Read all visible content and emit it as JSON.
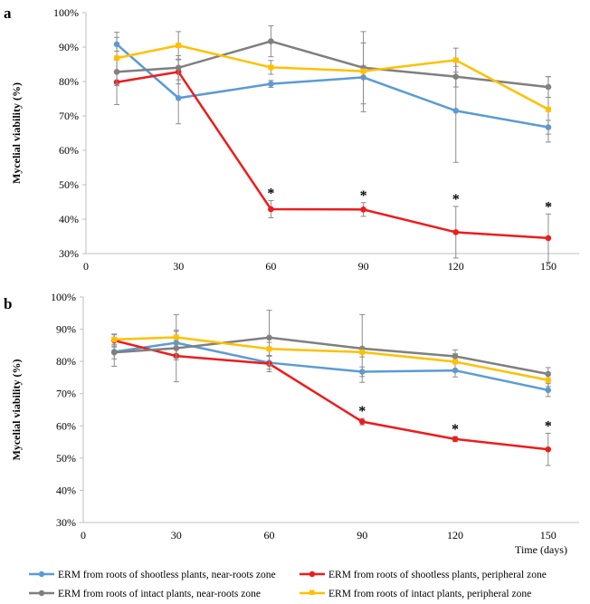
{
  "legend": [
    {
      "label": "ERM from  roots of shootless plants, near-roots zone",
      "color": "#5b9bd5"
    },
    {
      "label": "ERM from  roots of shootless plants, peripheral zone",
      "color": "#ee1c1c"
    },
    {
      "label": "ERM from roots of intact plants, near-roots zone",
      "color": "#7f7f7f"
    },
    {
      "label": "ERM from roots of intact plants, peripheral zone",
      "color": "#ffc000"
    }
  ],
  "chart_data": [
    {
      "type": "line",
      "panel_label": "a",
      "ylabel": "Mycelial viability (%)",
      "xlabel": "",
      "x": [
        10,
        30,
        60,
        90,
        120,
        150
      ],
      "xlim": [
        0,
        160
      ],
      "ylim": [
        30,
        100
      ],
      "xticks": [
        "0",
        "30",
        "60",
        "90",
        "120",
        "150"
      ],
      "yticks": [
        "30%",
        "40%",
        "50%",
        "60%",
        "70%",
        "80%",
        "90%",
        "100%"
      ],
      "series": [
        {
          "color": "#5b9bd5",
          "values": [
            90.8,
            75.2,
            79.3,
            81.2,
            71.5,
            66.7
          ],
          "err": [
            2.0,
            7.5,
            1.0,
            10.0,
            15.0,
            2.0
          ]
        },
        {
          "color": "#ee1c1c",
          "values": [
            79.8,
            82.8,
            42.9,
            42.8,
            36.2,
            34.5
          ],
          "err": [
            6.5,
            3.5,
            2.5,
            2.0,
            7.5,
            7.0
          ]
        },
        {
          "color": "#7f7f7f",
          "values": [
            82.8,
            84.0,
            91.7,
            84.0,
            81.4,
            78.4
          ],
          "err": [
            4.0,
            3.5,
            4.5,
            10.5,
            3.0,
            3.0
          ]
        },
        {
          "color": "#ffc000",
          "values": [
            86.8,
            90.5,
            84.1,
            83.0,
            86.2,
            71.9
          ],
          "err": [
            7.5,
            4.0,
            2.0,
            1.5,
            3.5,
            9.5
          ]
        }
      ],
      "annotations": [
        {
          "x": 60,
          "text": "*"
        },
        {
          "x": 90,
          "text": "*"
        },
        {
          "x": 120,
          "text": "*"
        },
        {
          "x": 150,
          "text": "*"
        }
      ]
    },
    {
      "type": "line",
      "panel_label": "b",
      "ylabel": "Mycelial viability (%)",
      "xlabel": "Time (days)",
      "x": [
        10,
        30,
        60,
        90,
        120,
        150
      ],
      "xlim": [
        0,
        160
      ],
      "ylim": [
        30,
        100
      ],
      "xticks": [
        "0",
        "30",
        "60",
        "90",
        "120",
        "150"
      ],
      "yticks": [
        "30%",
        "40%",
        "50%",
        "60%",
        "70%",
        "80%",
        "90%",
        "100%"
      ],
      "series": [
        {
          "color": "#5b9bd5",
          "values": [
            83.0,
            85.8,
            79.6,
            76.8,
            77.2,
            71.1
          ],
          "err": [
            4.5,
            3.5,
            2.0,
            1.5,
            2.0,
            2.0
          ]
        },
        {
          "color": "#ee1c1c",
          "values": [
            86.5,
            81.7,
            79.3,
            61.3,
            55.9,
            52.7
          ],
          "err": [
            2.0,
            8.0,
            2.5,
            1.0,
            0.8,
            5.0
          ]
        },
        {
          "color": "#7f7f7f",
          "values": [
            82.8,
            84.1,
            87.4,
            84.0,
            81.6,
            76.1
          ],
          "err": [
            2.0,
            3.0,
            8.5,
            10.5,
            2.0,
            2.0
          ]
        },
        {
          "color": "#ffc000",
          "values": [
            86.8,
            87.5,
            83.9,
            82.9,
            79.9,
            74.2
          ],
          "err": [
            1.5,
            7.0,
            2.0,
            1.5,
            2.5,
            2.0
          ]
        }
      ],
      "annotations": [
        {
          "x": 90,
          "text": "*"
        },
        {
          "x": 120,
          "text": "*"
        },
        {
          "x": 150,
          "text": "*"
        }
      ]
    }
  ]
}
